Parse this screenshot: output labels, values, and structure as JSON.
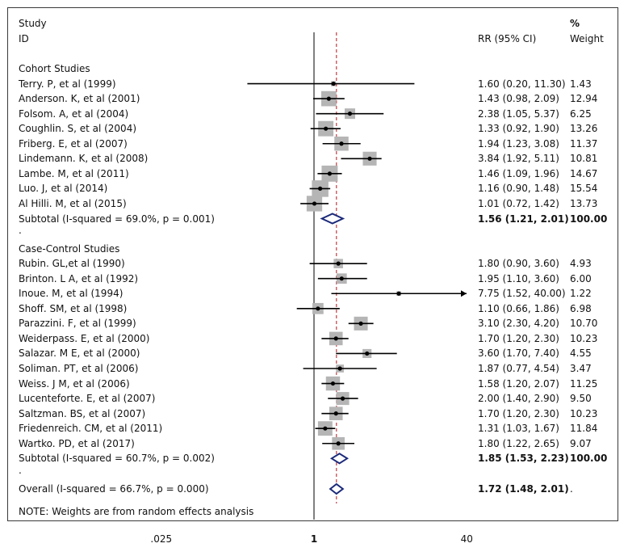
{
  "header": {
    "study": "Study",
    "id": "ID",
    "rr": "RR (95% CI)",
    "pct": "%",
    "weight": "Weight"
  },
  "note": "NOTE: Weights are from random effects analysis",
  "colors": {
    "box": "#b5b5b5",
    "line": "#000000",
    "ref": "#000000",
    "pooled_line": "#b8151b",
    "diamond": "#1b2a7a"
  },
  "chart_data": {
    "type": "forest",
    "scale": "log",
    "reference_line": 1,
    "xticks": [
      {
        "value": 0.025,
        "label": ".025"
      },
      {
        "value": 1,
        "label": "1"
      },
      {
        "value": 40,
        "label": "40"
      }
    ],
    "overall_estimate_line": 1.72,
    "groups": [
      {
        "title": "Cohort Studies",
        "studies": [
          {
            "label": "Terry. P, et al (1999)",
            "rr": 1.6,
            "lo": 0.2,
            "hi": 11.3,
            "text": "1.60 (0.20, 11.30)",
            "weight": "1.43",
            "w": 1.43
          },
          {
            "label": "Anderson. K, et al (2001)",
            "rr": 1.43,
            "lo": 0.98,
            "hi": 2.09,
            "text": "1.43 (0.98, 2.09)",
            "weight": "12.94",
            "w": 12.94
          },
          {
            "label": "Folsom. A, et al (2004)",
            "rr": 2.38,
            "lo": 1.05,
            "hi": 5.37,
            "text": "2.38 (1.05, 5.37)",
            "weight": "6.25",
            "w": 6.25
          },
          {
            "label": "Coughlin. S, et al (2004)",
            "rr": 1.33,
            "lo": 0.92,
            "hi": 1.9,
            "text": "1.33 (0.92, 1.90)",
            "weight": "13.26",
            "w": 13.26
          },
          {
            "label": "Friberg. E, et al (2007)",
            "rr": 1.94,
            "lo": 1.23,
            "hi": 3.08,
            "text": "1.94 (1.23, 3.08)",
            "weight": "11.37",
            "w": 11.37
          },
          {
            "label": "Lindemann. K, et al (2008)",
            "rr": 3.84,
            "lo": 1.92,
            "hi": 5.11,
            "text": "3.84 (1.92, 5.11)",
            "weight": "10.81",
            "w": 10.81
          },
          {
            "label": "Lambe. M, et al (2011)",
            "rr": 1.46,
            "lo": 1.09,
            "hi": 1.96,
            "text": "1.46 (1.09, 1.96)",
            "weight": "14.67",
            "w": 14.67
          },
          {
            "label": "Luo. J, et al  (2014)",
            "rr": 1.16,
            "lo": 0.9,
            "hi": 1.48,
            "text": "1.16 (0.90, 1.48)",
            "weight": "15.54",
            "w": 15.54
          },
          {
            "label": "Al Hilli. M, et al (2015)",
            "rr": 1.01,
            "lo": 0.72,
            "hi": 1.42,
            "text": "1.01 (0.72, 1.42)",
            "weight": "13.73",
            "w": 13.73
          }
        ],
        "subtotal": {
          "label": "Subtotal  (I-squared = 69.0%, p = 0.001)",
          "rr": 1.56,
          "lo": 1.21,
          "hi": 2.01,
          "text": "1.56 (1.21, 2.01)",
          "weight": "100.00"
        }
      },
      {
        "title": "Case-Control Studies",
        "studies": [
          {
            "label": "Rubin. GL,et al (1990)",
            "rr": 1.8,
            "lo": 0.9,
            "hi": 3.6,
            "text": "1.80 (0.90, 3.60)",
            "weight": "4.93",
            "w": 4.93
          },
          {
            "label": "Brinton. L A, et al (1992)",
            "rr": 1.95,
            "lo": 1.1,
            "hi": 3.6,
            "text": "1.95 (1.10, 3.60)",
            "weight": "6.00",
            "w": 6.0
          },
          {
            "label": "Inoue. M, et al (1994)",
            "rr": 7.75,
            "lo": 1.52,
            "hi": 40.0,
            "text": "7.75 (1.52, 40.00)",
            "weight": "1.22",
            "w": 1.22,
            "arrow": true
          },
          {
            "label": "Shoff. SM, et al (1998)",
            "rr": 1.1,
            "lo": 0.66,
            "hi": 1.86,
            "text": "1.10 (0.66, 1.86)",
            "weight": "6.98",
            "w": 6.98
          },
          {
            "label": "Parazzini. F, et al (1999)",
            "rr": 3.1,
            "lo": 2.3,
            "hi": 4.2,
            "text": "3.10 (2.30, 4.20)",
            "weight": "10.70",
            "w": 10.7
          },
          {
            "label": "Weiderpass. E, et al (2000)",
            "rr": 1.7,
            "lo": 1.2,
            "hi": 2.3,
            "text": "1.70 (1.20, 2.30)",
            "weight": "10.23",
            "w": 10.23
          },
          {
            "label": "Salazar. M E, et al (2000)",
            "rr": 3.6,
            "lo": 1.7,
            "hi": 7.4,
            "text": "3.60 (1.70, 7.40)",
            "weight": "4.55",
            "w": 4.55
          },
          {
            "label": "Soliman. PT, et al (2006)",
            "rr": 1.87,
            "lo": 0.77,
            "hi": 4.54,
            "text": "1.87 (0.77, 4.54)",
            "weight": "3.47",
            "w": 3.47
          },
          {
            "label": "Weiss. J M, et al (2006)",
            "rr": 1.58,
            "lo": 1.2,
            "hi": 2.07,
            "text": "1.58 (1.20, 2.07)",
            "weight": "11.25",
            "w": 11.25
          },
          {
            "label": "Lucenteforte. E, et al (2007)",
            "rr": 2.0,
            "lo": 1.4,
            "hi": 2.9,
            "text": "2.00 (1.40, 2.90)",
            "weight": "9.50",
            "w": 9.5
          },
          {
            "label": "Saltzman. BS, et al (2007)",
            "rr": 1.7,
            "lo": 1.2,
            "hi": 2.3,
            "text": "1.70 (1.20, 2.30)",
            "weight": "10.23",
            "w": 10.23
          },
          {
            "label": "Friedenreich. CM,  et al (2011)",
            "rr": 1.31,
            "lo": 1.03,
            "hi": 1.67,
            "text": "1.31 (1.03, 1.67)",
            "weight": "11.84",
            "w": 11.84
          },
          {
            "label": "Wartko. PD, et al (2017)",
            "rr": 1.8,
            "lo": 1.22,
            "hi": 2.65,
            "text": "1.80 (1.22, 2.65)",
            "weight": "9.07",
            "w": 9.07
          }
        ],
        "subtotal": {
          "label": "Subtotal  (I-squared = 60.7%, p = 0.002)",
          "rr": 1.85,
          "lo": 1.53,
          "hi": 2.23,
          "text": "1.85 (1.53, 2.23)",
          "weight": "100.00"
        }
      }
    ],
    "overall": {
      "label": "Overall  (I-squared = 66.7%, p = 0.000)",
      "rr": 1.72,
      "lo": 1.48,
      "hi": 2.01,
      "text": "1.72 (1.48, 2.01)",
      "weight": "."
    }
  }
}
